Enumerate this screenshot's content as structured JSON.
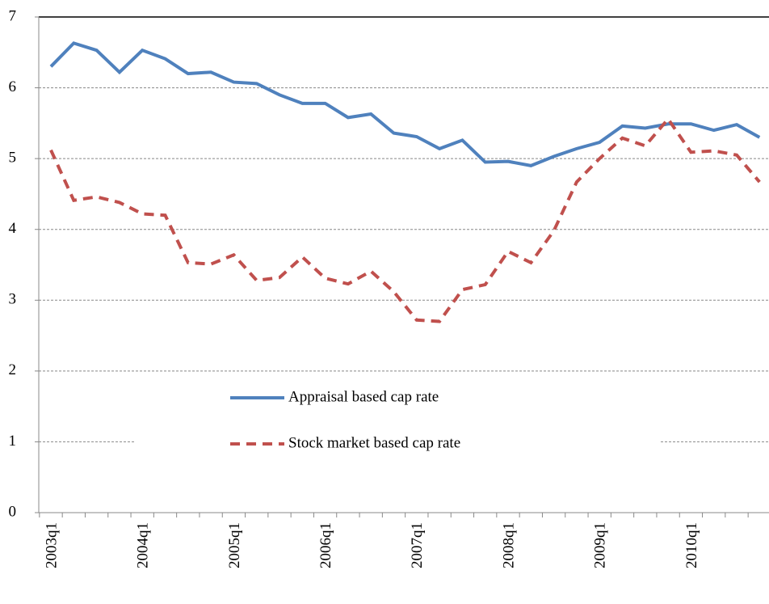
{
  "chart_data": {
    "type": "line",
    "categories": [
      "2003q1",
      null,
      null,
      null,
      "2004q1",
      null,
      null,
      null,
      "2005q1",
      null,
      null,
      null,
      "2006q1",
      null,
      null,
      null,
      "2007q1",
      null,
      null,
      null,
      "2008q1",
      null,
      null,
      null,
      "2009q1",
      null,
      null,
      null,
      "2010q1",
      null,
      null,
      null
    ],
    "series": [
      {
        "name": "Appraisal based cap rate",
        "color": "#4f81bd",
        "dash": "solid",
        "values": [
          6.3,
          6.63,
          6.53,
          6.22,
          6.53,
          6.41,
          6.2,
          6.22,
          6.08,
          6.06,
          5.9,
          5.78,
          5.78,
          5.58,
          5.63,
          5.36,
          5.31,
          5.14,
          5.26,
          4.95,
          4.96,
          4.9,
          5.03,
          5.14,
          5.23,
          5.46,
          5.43,
          5.49,
          5.49,
          5.4,
          5.48,
          5.3
        ]
      },
      {
        "name": "Stock market based cap rate",
        "color": "#c0504d",
        "dash": "dashed",
        "values": [
          5.12,
          4.41,
          4.46,
          4.38,
          4.22,
          4.2,
          3.53,
          3.51,
          3.64,
          3.28,
          3.32,
          3.61,
          3.31,
          3.23,
          3.41,
          3.12,
          2.72,
          2.7,
          3.15,
          3.22,
          3.69,
          3.53,
          3.98,
          4.67,
          5.0,
          5.29,
          5.18,
          5.56,
          5.09,
          5.11,
          5.05,
          4.67
        ]
      }
    ],
    "ylim": [
      0,
      7
    ],
    "yticks": [
      0,
      1,
      2,
      3,
      4,
      5,
      6,
      7
    ],
    "grid": true,
    "legend": "center"
  }
}
